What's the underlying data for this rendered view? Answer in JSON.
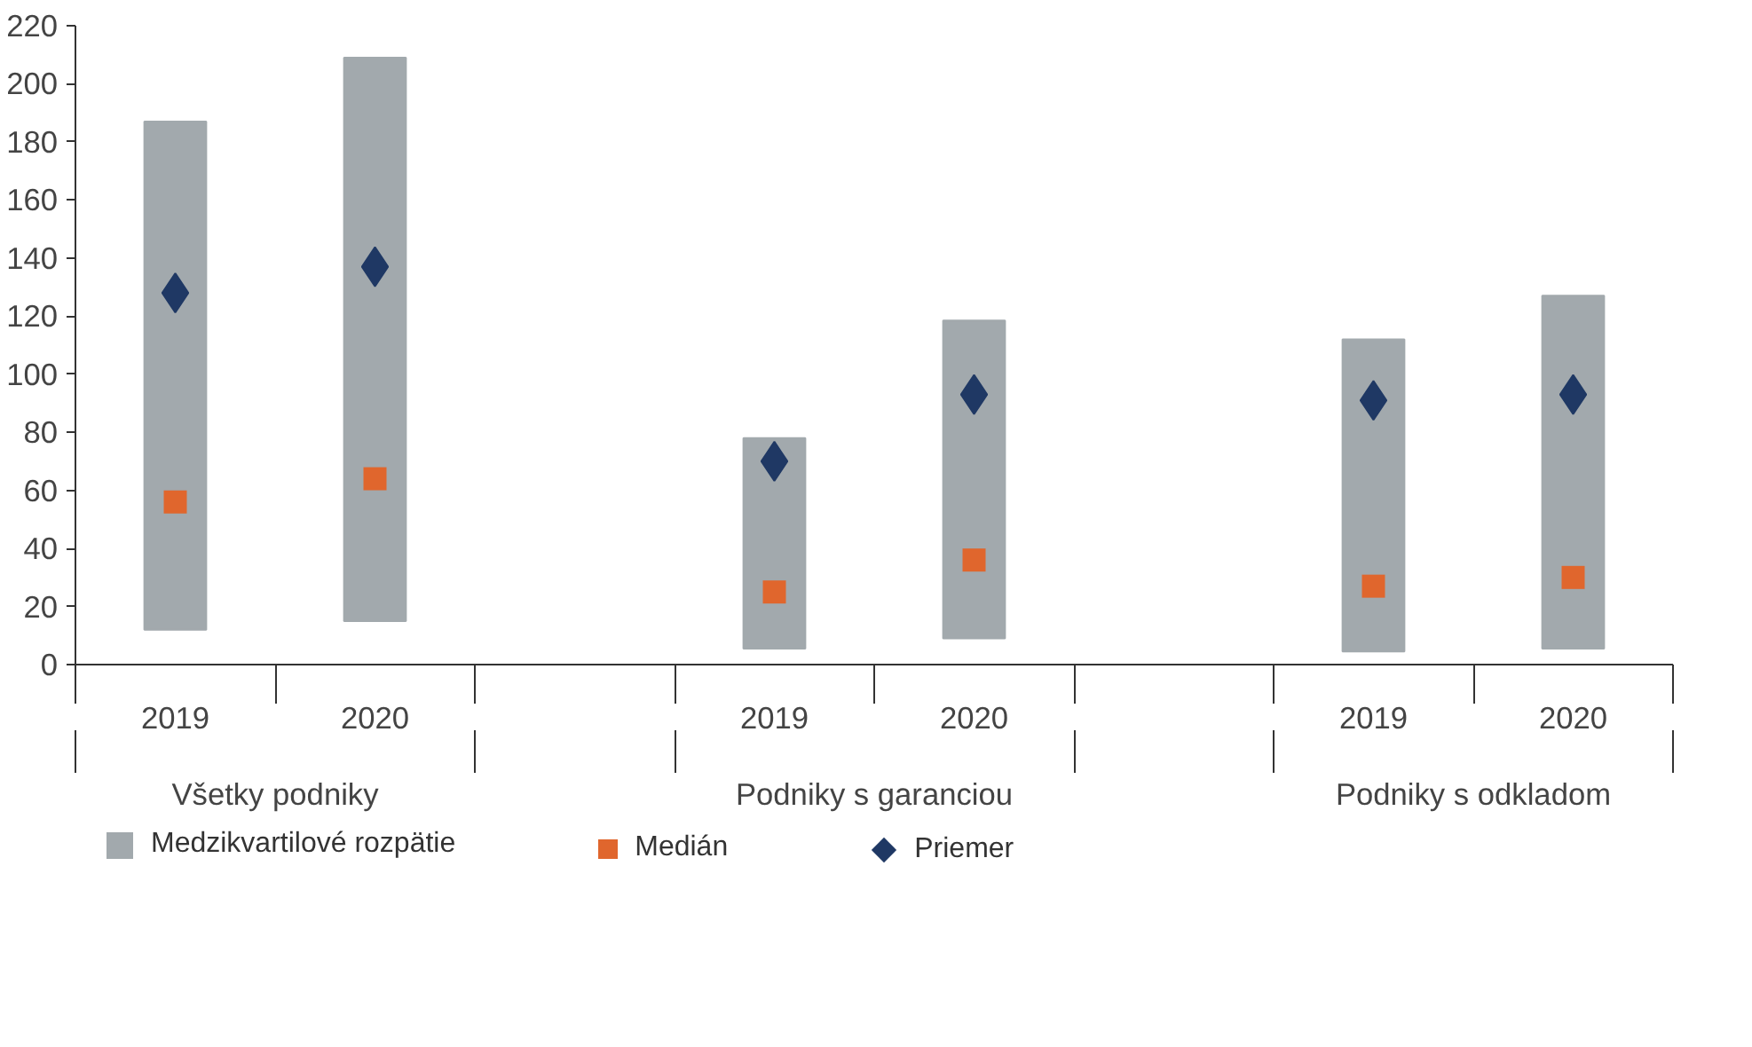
{
  "chart_data": {
    "type": "bar",
    "categories": [
      "2019",
      "2020",
      null,
      "2019",
      "2020",
      null,
      "2019",
      "2020"
    ],
    "series": [
      {
        "name": "Medzikvartilové rozpätie",
        "color": "#a2a9ad",
        "base": [
          12,
          15,
          null,
          5.5,
          9,
          null,
          4.5,
          5.5
        ],
        "values": [
          175,
          194,
          null,
          72.5,
          109.5,
          null,
          107.5,
          121.5
        ]
      },
      {
        "name": "Medián",
        "type": "scatter",
        "marker": "square",
        "color": "#e0662d",
        "values": [
          56,
          64,
          null,
          25,
          36,
          null,
          27,
          30
        ]
      },
      {
        "name": "Priemer",
        "type": "scatter",
        "marker": "diamond",
        "color": "#1f3864",
        "values": [
          128,
          137,
          null,
          70,
          93,
          null,
          91,
          93
        ]
      }
    ],
    "annotations": [
      "Všetky podniky",
      "Podniky s garanciou",
      "Podniky s odkladom"
    ],
    "ylim": [
      0,
      220
    ],
    "yticks": [
      0,
      20,
      40,
      60,
      80,
      100,
      120,
      140,
      160,
      180,
      200,
      220
    ],
    "grid": false,
    "legend": "bottom"
  }
}
